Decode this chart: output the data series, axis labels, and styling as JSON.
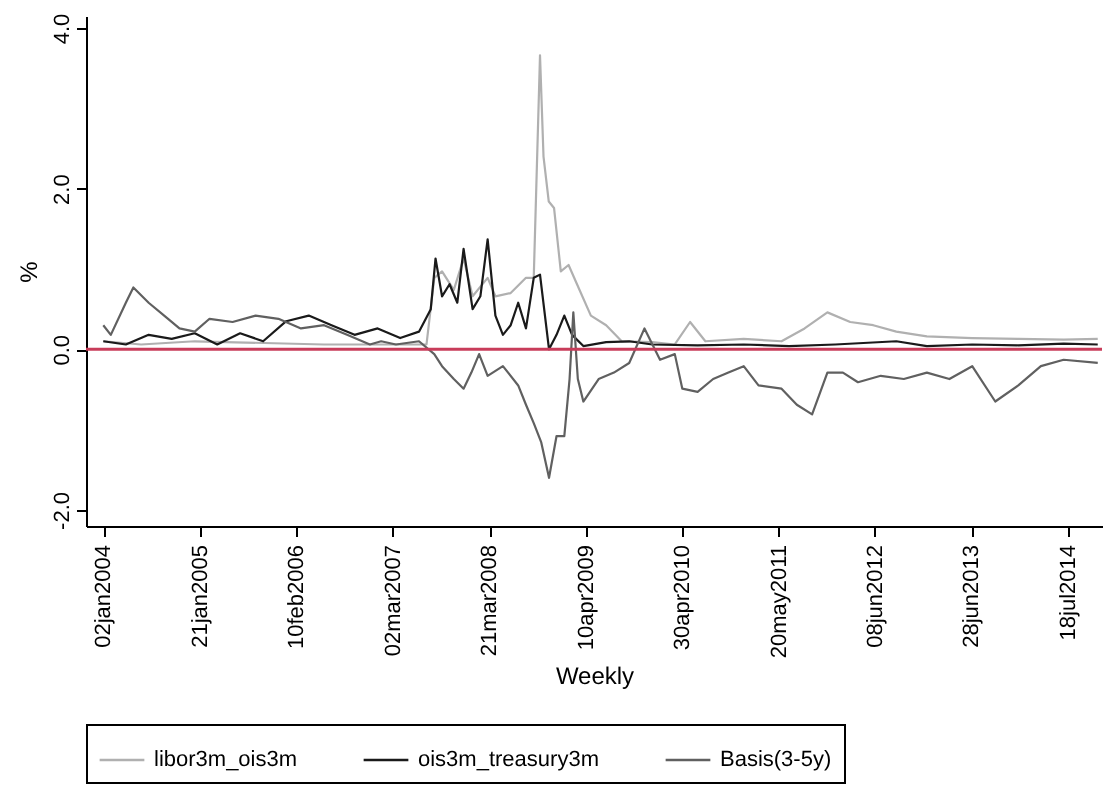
{
  "chart_data": {
    "type": "line",
    "xlabel": "Weekly",
    "ylabel": "%",
    "legend": "bottom",
    "grid": false,
    "line_style": "solid",
    "marker": "none",
    "xlim": [
      "2003-10-25",
      "2014-12-01"
    ],
    "xticks": [
      {
        "value": "2004-01-02",
        "label": "02jan2004"
      },
      {
        "value": "2005-01-21",
        "label": "21jan2005"
      },
      {
        "value": "2006-02-10",
        "label": "10feb2006"
      },
      {
        "value": "2007-03-02",
        "label": "02mar2007"
      },
      {
        "value": "2008-03-21",
        "label": "21mar2008"
      },
      {
        "value": "2009-04-10",
        "label": "10apr2009"
      },
      {
        "value": "2010-04-30",
        "label": "30apr2010"
      },
      {
        "value": "2011-05-20",
        "label": "20may2011"
      },
      {
        "value": "2012-06-08",
        "label": "08jun2012"
      },
      {
        "value": "2013-06-28",
        "label": "28jun2013"
      },
      {
        "value": "2014-07-18",
        "label": "18jul2014"
      }
    ],
    "ylim": [
      -2.2,
      4.15
    ],
    "yticks": [
      {
        "value": -2,
        "label": "-2.0"
      },
      {
        "value": 0,
        "label": "0.0"
      },
      {
        "value": 2,
        "label": "2.0"
      },
      {
        "value": 4,
        "label": "4.0"
      }
    ],
    "ref_lines": [
      {
        "axis": "y",
        "value": 0,
        "color": "#c83c5a"
      }
    ],
    "series": [
      {
        "name": "libor3m_ois3m",
        "color": "#b0b0b0",
        "x": [
          "2004-01-02",
          "2004-06-01",
          "2005-01-01",
          "2006-06-01",
          "2007-01-01",
          "2007-07-15",
          "2007-08-15",
          "2007-09-15",
          "2007-11-01",
          "2007-12-10",
          "2008-01-15",
          "2008-03-15",
          "2008-04-15",
          "2008-06-15",
          "2008-08-15",
          "2008-09-15",
          "2008-10-10",
          "2008-10-24",
          "2008-11-14",
          "2008-12-05",
          "2009-01-01",
          "2009-02-01",
          "2009-03-01",
          "2009-05-01",
          "2009-07-01",
          "2009-09-01",
          "2010-01-01",
          "2010-04-01",
          "2010-06-01",
          "2010-08-01",
          "2011-01-01",
          "2011-06-01",
          "2011-09-01",
          "2011-12-01",
          "2012-03-01",
          "2012-06-01",
          "2012-09-01",
          "2013-01-01",
          "2013-07-01",
          "2014-01-01",
          "2014-07-01",
          "2014-11-14"
        ],
        "values": [
          0.1,
          0.06,
          0.1,
          0.06,
          0.06,
          0.06,
          0.89,
          0.97,
          0.74,
          1.13,
          0.66,
          0.89,
          0.66,
          0.7,
          0.89,
          0.89,
          3.66,
          2.4,
          1.84,
          1.76,
          0.97,
          1.05,
          0.85,
          0.42,
          0.3,
          0.1,
          0.09,
          0.06,
          0.34,
          0.1,
          0.13,
          0.1,
          0.26,
          0.46,
          0.34,
          0.3,
          0.22,
          0.16,
          0.14,
          0.13,
          0.12,
          0.13
        ]
      },
      {
        "name": "ois3m_treasury3m",
        "color": "#1a1a1a",
        "x": [
          "2004-01-02",
          "2004-04-01",
          "2004-07-01",
          "2004-10-01",
          "2005-01-01",
          "2005-04-01",
          "2005-07-01",
          "2005-10-01",
          "2006-01-01",
          "2006-04-01",
          "2006-07-01",
          "2006-10-01",
          "2007-01-01",
          "2007-04-01",
          "2007-06-15",
          "2007-08-01",
          "2007-08-20",
          "2007-09-15",
          "2007-10-15",
          "2007-11-15",
          "2007-12-10",
          "2008-01-15",
          "2008-02-15",
          "2008-03-15",
          "2008-04-15",
          "2008-05-15",
          "2008-06-15",
          "2008-07-15",
          "2008-08-15",
          "2008-09-15",
          "2008-10-10",
          "2008-11-15",
          "2008-12-15",
          "2009-01-15",
          "2009-02-15",
          "2009-04-01",
          "2009-07-01",
          "2009-10-01",
          "2010-01-01",
          "2010-07-01",
          "2011-01-01",
          "2011-07-01",
          "2012-01-01",
          "2012-09-01",
          "2013-01-01",
          "2013-07-01",
          "2014-01-01",
          "2014-07-01",
          "2014-11-14"
        ],
        "values": [
          0.1,
          0.06,
          0.18,
          0.13,
          0.2,
          0.06,
          0.2,
          0.1,
          0.35,
          0.42,
          0.3,
          0.18,
          0.26,
          0.14,
          0.22,
          0.5,
          1.13,
          0.66,
          0.81,
          0.58,
          1.25,
          0.5,
          0.66,
          1.37,
          0.42,
          0.18,
          0.3,
          0.58,
          0.26,
          0.89,
          0.93,
          0.0,
          0.18,
          0.42,
          0.18,
          0.04,
          0.09,
          0.1,
          0.06,
          0.05,
          0.06,
          0.04,
          0.06,
          0.1,
          0.04,
          0.06,
          0.05,
          0.07,
          0.06
        ]
      },
      {
        "name": "Basis(3-5y)",
        "color": "#606060",
        "x": [
          "2004-01-02",
          "2004-02-01",
          "2004-04-01",
          "2004-05-01",
          "2004-07-01",
          "2004-09-01",
          "2004-11-01",
          "2005-01-01",
          "2005-03-01",
          "2005-06-01",
          "2005-09-01",
          "2005-12-01",
          "2006-03-01",
          "2006-06-01",
          "2006-09-01",
          "2006-12-01",
          "2007-01-15",
          "2007-03-15",
          "2007-06-15",
          "2007-08-15",
          "2007-09-15",
          "2007-11-01",
          "2007-12-10",
          "2008-01-10",
          "2008-02-10",
          "2008-03-15",
          "2008-05-15",
          "2008-07-15",
          "2008-08-15",
          "2008-09-15",
          "2008-10-15",
          "2008-11-15",
          "2008-12-15",
          "2009-01-15",
          "2009-02-05",
          "2009-02-20",
          "2009-03-10",
          "2009-04-01",
          "2009-06-01",
          "2009-08-01",
          "2009-10-01",
          "2009-12-01",
          "2010-02-01",
          "2010-04-01",
          "2010-05-01",
          "2010-07-01",
          "2010-09-01",
          "2010-11-01",
          "2011-01-01",
          "2011-03-01",
          "2011-06-01",
          "2011-08-01",
          "2011-10-01",
          "2011-12-01",
          "2012-02-01",
          "2012-04-01",
          "2012-07-01",
          "2012-10-01",
          "2013-01-01",
          "2013-04-01",
          "2013-07-01",
          "2013-10-01",
          "2014-01-01",
          "2014-04-01",
          "2014-07-01",
          "2014-11-14"
        ],
        "values": [
          0.3,
          0.18,
          0.58,
          0.77,
          0.58,
          0.42,
          0.26,
          0.22,
          0.38,
          0.34,
          0.42,
          0.38,
          0.26,
          0.3,
          0.18,
          0.06,
          0.1,
          0.06,
          0.1,
          -0.06,
          -0.21,
          -0.37,
          -0.49,
          -0.29,
          -0.06,
          -0.33,
          -0.21,
          -0.45,
          -0.69,
          -0.92,
          -1.16,
          -1.6,
          -1.08,
          -1.08,
          -0.37,
          0.46,
          -0.37,
          -0.65,
          -0.37,
          -0.29,
          -0.17,
          0.26,
          -0.13,
          -0.06,
          -0.49,
          -0.53,
          -0.37,
          -0.29,
          -0.21,
          -0.45,
          -0.49,
          -0.69,
          -0.81,
          -0.29,
          -0.29,
          -0.41,
          -0.33,
          -0.37,
          -0.29,
          -0.37,
          -0.21,
          -0.65,
          -0.45,
          -0.21,
          -0.13,
          -0.17
        ]
      }
    ]
  }
}
